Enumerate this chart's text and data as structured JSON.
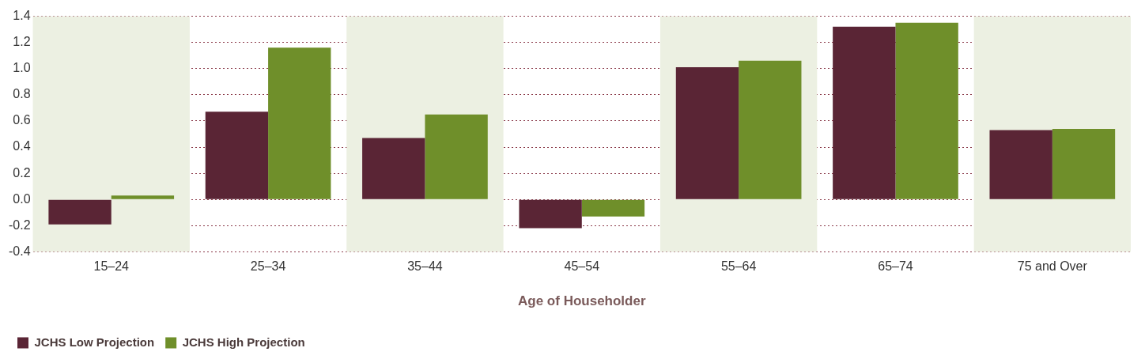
{
  "chart_data": {
    "type": "bar",
    "xlabel": "Age of Householder",
    "categories": [
      "15–24",
      "25–34",
      "35–44",
      "45–54",
      "55–64",
      "65–74",
      "75 and Over"
    ],
    "series": [
      {
        "name": "JCHS Low Projection",
        "color": "#5a2535",
        "values": [
          -0.19,
          0.67,
          0.47,
          -0.22,
          1.01,
          1.32,
          0.53
        ]
      },
      {
        "name": "JCHS High Projection",
        "color": "#6f8f2a",
        "values": [
          0.03,
          1.16,
          0.65,
          -0.13,
          1.06,
          1.35,
          0.54
        ]
      }
    ],
    "ylim": [
      -0.4,
      1.4
    ],
    "yticks": [
      {
        "value": -0.4,
        "label": "-0.4"
      },
      {
        "value": -0.2,
        "label": "-0.2"
      },
      {
        "value": 0,
        "label": "0.0"
      },
      {
        "value": 0.2,
        "label": "0.2"
      },
      {
        "value": 0.4,
        "label": "0.4"
      },
      {
        "value": 0.6,
        "label": "0.6"
      },
      {
        "value": 0.8,
        "label": "0.8"
      },
      {
        "value": 1,
        "label": "1.0"
      },
      {
        "value": 1.2,
        "label": "1.2"
      },
      {
        "value": 1.4,
        "label": "1.4"
      }
    ],
    "grid": "y",
    "legend": "bottom left",
    "bands": [
      {
        "axis": "x",
        "from": "15–24",
        "to": "15–24",
        "color": "#ecf0e2"
      },
      {
        "axis": "x",
        "from": "35–44",
        "to": "35–44",
        "color": "#ecf0e2"
      },
      {
        "axis": "x",
        "from": "55–64",
        "to": "55–64",
        "color": "#ecf0e2"
      },
      {
        "axis": "x",
        "from": "75 and Over",
        "to": "75 and Over",
        "color": "#ecf0e2"
      }
    ]
  }
}
